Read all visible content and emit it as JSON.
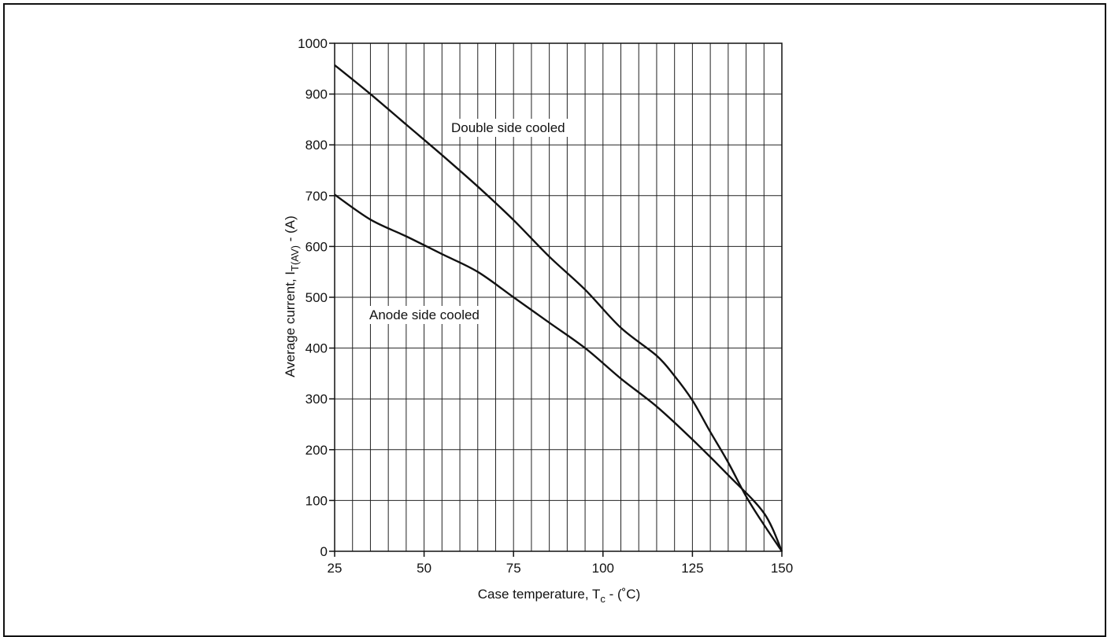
{
  "chart_data": {
    "type": "line",
    "xlabel": "Case temperature, T",
    "xlabel_sub": "c",
    "xlabel_suffix": " - (˚C)",
    "ylabel": "Average current, I",
    "ylabel_sub": "T(AV)",
    "ylabel_suffix": " - (A)",
    "xlim": [
      25,
      150
    ],
    "ylim": [
      0,
      1000
    ],
    "x_ticks": [
      25,
      50,
      75,
      100,
      125,
      150
    ],
    "y_ticks": [
      0,
      100,
      200,
      300,
      400,
      500,
      600,
      700,
      800,
      900,
      1000
    ],
    "x_minor_step": 5,
    "grid": true,
    "series": [
      {
        "name": "Double side cooled",
        "color": "#111111",
        "x": [
          25,
          35,
          45,
          55,
          65,
          75,
          85,
          95,
          105,
          115,
          120,
          125,
          130,
          135,
          140,
          145,
          150
        ],
        "y": [
          957,
          900,
          840,
          780,
          718,
          652,
          580,
          515,
          440,
          385,
          345,
          297,
          235,
          175,
          108,
          52,
          0
        ]
      },
      {
        "name": "Anode side cooled",
        "color": "#111111",
        "x": [
          25,
          35,
          45,
          55,
          65,
          75,
          85,
          95,
          105,
          115,
          125,
          135,
          145,
          150
        ],
        "y": [
          702,
          653,
          620,
          585,
          550,
          500,
          450,
          400,
          340,
          285,
          220,
          150,
          75,
          0
        ]
      }
    ]
  }
}
